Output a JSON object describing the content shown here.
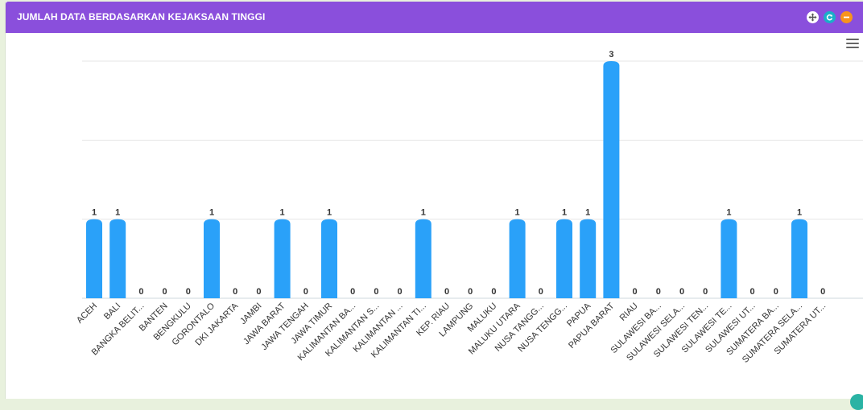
{
  "panel": {
    "title": "JUMLAH DATA BERDASARKAN KEJAKSAAN TINGGI",
    "header_color": "#8A4FDC",
    "buttons": [
      {
        "name": "move-icon",
        "color": "#FFFFFF"
      },
      {
        "name": "refresh-icon",
        "color": "#1AAFC8"
      },
      {
        "name": "collapse-icon",
        "color": "#F7941D"
      }
    ],
    "chart_menu_icon": "hamburger-icon"
  },
  "chart_data": {
    "type": "bar",
    "title": "",
    "xlabel": "",
    "ylabel": "",
    "ylim": [
      0,
      3
    ],
    "grid": true,
    "bar_color": "#2AA1F9",
    "categories": [
      "ACEH",
      "BALI",
      "BANGKA BELIT...",
      "BANTEN",
      "BENGKULU",
      "GORONTALO",
      "DKI JAKARTA",
      "JAMBI",
      "JAWA BARAT",
      "JAWA TENGAH",
      "JAWA TIMUR",
      "KALIMANTAN BA...",
      "KALIMANTAN S...",
      "KALIMANTAN ...",
      "KALIMANTAN TI...",
      "KEP. RIAU",
      "LAMPUNG",
      "MALUKU",
      "MALUKU UTARA",
      "NUSA TANGG...",
      "NUSA TENGG...",
      "PAPUA",
      "PAPUA BARAT",
      "RIAU",
      "SULAWESI BA...",
      "SULAWESI SELA...",
      "SULAWESI TEN...",
      "SULAWESI TE...",
      "SULAWESI UT...",
      "SUMATERA BA...",
      "SUMATERA SELA...",
      "SUMATERA UT..."
    ],
    "values": [
      1,
      1,
      0,
      0,
      0,
      1,
      0,
      0,
      1,
      0,
      1,
      0,
      0,
      0,
      1,
      0,
      0,
      0,
      1,
      0,
      1,
      1,
      3,
      0,
      0,
      0,
      0,
      1,
      0,
      0,
      1,
      0
    ],
    "data_labels": [
      "1",
      "1",
      "0",
      "0",
      "0",
      "1",
      "0",
      "0",
      "1",
      "0",
      "1",
      "0",
      "0",
      "0",
      "1",
      "0",
      "0",
      "0",
      "1",
      "0",
      "1",
      "1",
      "3",
      "0",
      "0",
      "0",
      "0",
      "1",
      "0",
      "0",
      "1",
      "0"
    ]
  }
}
